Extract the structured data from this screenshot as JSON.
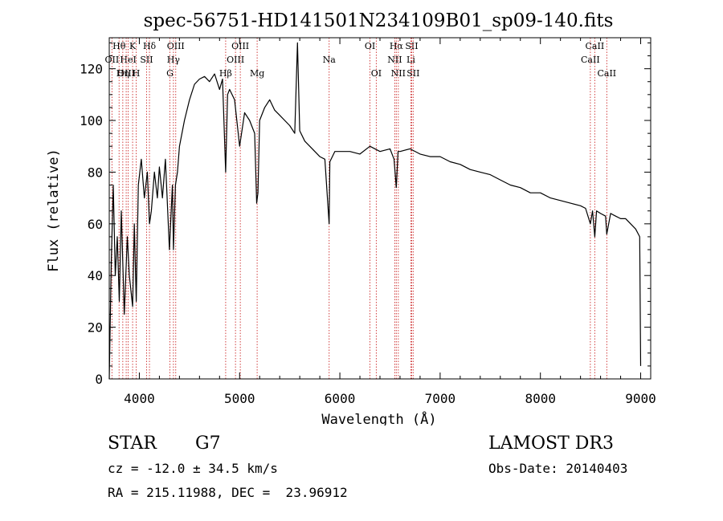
{
  "chart_data": {
    "type": "line",
    "title": "spec-56751-HD141501N234109B01_sp09-140.fits",
    "xlabel": "Wavelength (Å)",
    "ylabel": "Flux (relative)",
    "xlim": [
      3700,
      9100
    ],
    "ylim": [
      0,
      132
    ],
    "x_ticks": [
      4000,
      5000,
      6000,
      7000,
      8000,
      9000
    ],
    "y_ticks": [
      0,
      20,
      40,
      60,
      80,
      100,
      120
    ],
    "grid": false,
    "line_color": "#000000",
    "marker_color": "#cc2a2a",
    "series": [
      {
        "x": [
          3700,
          3720,
          3740,
          3760,
          3780,
          3800,
          3820,
          3850,
          3880,
          3900,
          3933,
          3950,
          3969,
          3990,
          4020,
          4050,
          4080,
          4101,
          4120,
          4150,
          4180,
          4200,
          4230,
          4260,
          4300,
          4330,
          4340,
          4360,
          4380,
          4400,
          4450,
          4500,
          4550,
          4600,
          4650,
          4700,
          4750,
          4800,
          4830,
          4861,
          4880,
          4900,
          4950,
          5000,
          5050,
          5100,
          5150,
          5170,
          5183,
          5200,
          5250,
          5300,
          5350,
          5400,
          5450,
          5500,
          5550,
          5577,
          5600,
          5650,
          5700,
          5750,
          5800,
          5850,
          5893,
          5900,
          5950,
          6000,
          6100,
          6200,
          6300,
          6400,
          6500,
          6540,
          6563,
          6580,
          6600,
          6700,
          6800,
          6900,
          7000,
          7100,
          7200,
          7300,
          7400,
          7500,
          7600,
          7700,
          7800,
          7900,
          8000,
          8100,
          8200,
          8300,
          8400,
          8450,
          8498,
          8520,
          8542,
          8560,
          8600,
          8650,
          8662,
          8700,
          8750,
          8800,
          8850,
          8900,
          8950,
          8990,
          9000
        ],
        "y": [
          0,
          45,
          75,
          40,
          55,
          30,
          65,
          25,
          55,
          40,
          28,
          60,
          30,
          75,
          85,
          70,
          80,
          60,
          65,
          80,
          70,
          82,
          70,
          85,
          50,
          75,
          50,
          75,
          80,
          90,
          100,
          108,
          114,
          116,
          117,
          115,
          118,
          112,
          116,
          80,
          110,
          112,
          108,
          90,
          103,
          100,
          95,
          68,
          72,
          100,
          105,
          108,
          104,
          102,
          100,
          98,
          95,
          130,
          96,
          92,
          90,
          88,
          86,
          85,
          60,
          84,
          88,
          88,
          88,
          87,
          90,
          88,
          89,
          85,
          74,
          88,
          88,
          89,
          87,
          86,
          86,
          84,
          83,
          81,
          80,
          79,
          77,
          75,
          74,
          72,
          72,
          70,
          69,
          68,
          67,
          66,
          60,
          65,
          55,
          65,
          64,
          63,
          56,
          64,
          63,
          62,
          62,
          60,
          58,
          55,
          5
        ]
      }
    ],
    "lines_top": [
      {
        "label": "Hθ",
        "x": 3798
      },
      {
        "label": "K",
        "x": 3933
      },
      {
        "label": "Hδ",
        "x": 4101
      },
      {
        "label": "OIII",
        "x": 4363
      },
      {
        "label": "OIII",
        "x": 5007
      },
      {
        "label": "OI",
        "x": 6300
      },
      {
        "label": "Hα",
        "x": 6563
      },
      {
        "label": "SII",
        "x": 6716
      },
      {
        "label": "CaII",
        "x": 8542
      }
    ],
    "lines_mid": [
      {
        "label": "OII",
        "x": 3727
      },
      {
        "label": "HeI",
        "x": 3889
      },
      {
        "label": "SII",
        "x": 4072
      },
      {
        "label": "Hγ",
        "x": 4340
      },
      {
        "label": "OIII",
        "x": 4959
      },
      {
        "label": "Na",
        "x": 5893
      },
      {
        "label": "NII",
        "x": 6548
      },
      {
        "label": "Li",
        "x": 6708
      },
      {
        "label": "CaII",
        "x": 8498
      }
    ],
    "lines_low": [
      {
        "label": "OIII",
        "x": 3869
      },
      {
        "label": "Hη",
        "x": 3835
      },
      {
        "label": "H",
        "x": 3969
      },
      {
        "label": "G",
        "x": 4305
      },
      {
        "label": "Hβ",
        "x": 4861
      },
      {
        "label": "Mg",
        "x": 5175
      },
      {
        "label": "OI",
        "x": 6363
      },
      {
        "label": "NII",
        "x": 6583
      },
      {
        "label": "SII",
        "x": 6731
      },
      {
        "label": "CaII",
        "x": 8662
      }
    ]
  },
  "footer": {
    "object_class": "STAR",
    "subclass": "G7",
    "survey": "LAMOST DR3",
    "cz": "cz = -12.0 ± 34.5 km/s",
    "obs_date": "Obs-Date: 20140403",
    "coords": "RA = 215.11988, DEC =  23.96912"
  }
}
